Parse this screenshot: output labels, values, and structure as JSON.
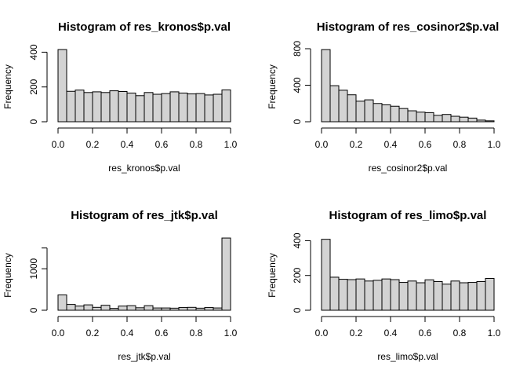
{
  "chart_data": [
    {
      "type": "bar",
      "title": "Histogram of res_kronos$p.val",
      "xlabel": "res_kronos$p.val",
      "ylabel": "Frequency",
      "xlim": [
        0,
        1
      ],
      "ylim": [
        0,
        420
      ],
      "xticks": [
        0.0,
        0.2,
        0.4,
        0.6,
        0.8,
        1.0
      ],
      "xtick_labels": [
        "0.0",
        "0.2",
        "0.4",
        "0.6",
        "0.8",
        "1.0"
      ],
      "yticks": [
        0,
        200,
        400
      ],
      "ytick_labels": [
        "0",
        "200",
        "400"
      ],
      "bin_edges": [
        0,
        0.05,
        0.1,
        0.15,
        0.2,
        0.25,
        0.3,
        0.35,
        0.4,
        0.45,
        0.5,
        0.55,
        0.6,
        0.65,
        0.7,
        0.75,
        0.8,
        0.85,
        0.9,
        0.95,
        1.0
      ],
      "values": [
        415,
        175,
        182,
        168,
        172,
        168,
        178,
        174,
        165,
        150,
        168,
        158,
        162,
        172,
        165,
        160,
        162,
        154,
        158,
        183
      ]
    },
    {
      "type": "bar",
      "title": "Histogram of res_cosinor2$p.val",
      "xlabel": "res_cosinor2$p.val",
      "ylabel": "Frequency",
      "xlim": [
        0,
        1
      ],
      "ylim": [
        0,
        800
      ],
      "xticks": [
        0.0,
        0.2,
        0.4,
        0.6,
        0.8,
        1.0
      ],
      "xtick_labels": [
        "0.0",
        "0.2",
        "0.4",
        "0.6",
        "0.8",
        "1.0"
      ],
      "yticks": [
        0,
        400,
        800
      ],
      "ytick_labels": [
        "0",
        "400",
        "800"
      ],
      "bin_edges": [
        0,
        0.05,
        0.1,
        0.15,
        0.2,
        0.25,
        0.3,
        0.35,
        0.4,
        0.45,
        0.5,
        0.55,
        0.6,
        0.65,
        0.7,
        0.75,
        0.8,
        0.85,
        0.9,
        0.95,
        1.0
      ],
      "values": [
        790,
        395,
        345,
        295,
        225,
        240,
        200,
        185,
        170,
        145,
        120,
        105,
        100,
        70,
        80,
        60,
        50,
        40,
        18,
        10
      ]
    },
    {
      "type": "bar",
      "title": "Histogram of res_jtk$p.val",
      "xlabel": "res_jtk$p.val",
      "ylabel": "Frequency",
      "xlim": [
        0,
        1
      ],
      "ylim": [
        0,
        1760
      ],
      "xticks": [
        0.0,
        0.2,
        0.4,
        0.6,
        0.8,
        1.0
      ],
      "xtick_labels": [
        "0.0",
        "0.2",
        "0.4",
        "0.6",
        "0.8",
        "1.0"
      ],
      "yticks": [
        0,
        1000
      ],
      "ytick_labels": [
        "0",
        "1000"
      ],
      "bin_edges": [
        0,
        0.05,
        0.1,
        0.15,
        0.2,
        0.25,
        0.3,
        0.35,
        0.4,
        0.45,
        0.5,
        0.55,
        0.6,
        0.65,
        0.7,
        0.75,
        0.8,
        0.85,
        0.9,
        0.95,
        1.0
      ],
      "values": [
        370,
        140,
        100,
        130,
        70,
        120,
        45,
        100,
        110,
        60,
        110,
        55,
        55,
        50,
        65,
        70,
        50,
        65,
        55,
        1740
      ]
    },
    {
      "type": "bar",
      "title": "Histogram of res_limo$p.val",
      "xlabel": "res_limo$p.val",
      "ylabel": "Frequency",
      "xlim": [
        0,
        1
      ],
      "ylim": [
        0,
        420
      ],
      "xticks": [
        0.0,
        0.2,
        0.4,
        0.6,
        0.8,
        1.0
      ],
      "xtick_labels": [
        "0.0",
        "0.2",
        "0.4",
        "0.6",
        "0.8",
        "1.0"
      ],
      "yticks": [
        0,
        200,
        400
      ],
      "ytick_labels": [
        "0",
        "200",
        "400"
      ],
      "bin_edges": [
        0,
        0.05,
        0.1,
        0.15,
        0.2,
        0.25,
        0.3,
        0.35,
        0.4,
        0.45,
        0.5,
        0.55,
        0.6,
        0.65,
        0.7,
        0.75,
        0.8,
        0.85,
        0.9,
        0.95,
        1.0
      ],
      "values": [
        408,
        190,
        178,
        176,
        180,
        168,
        172,
        180,
        176,
        160,
        168,
        158,
        175,
        165,
        150,
        168,
        158,
        160,
        165,
        183
      ]
    }
  ]
}
